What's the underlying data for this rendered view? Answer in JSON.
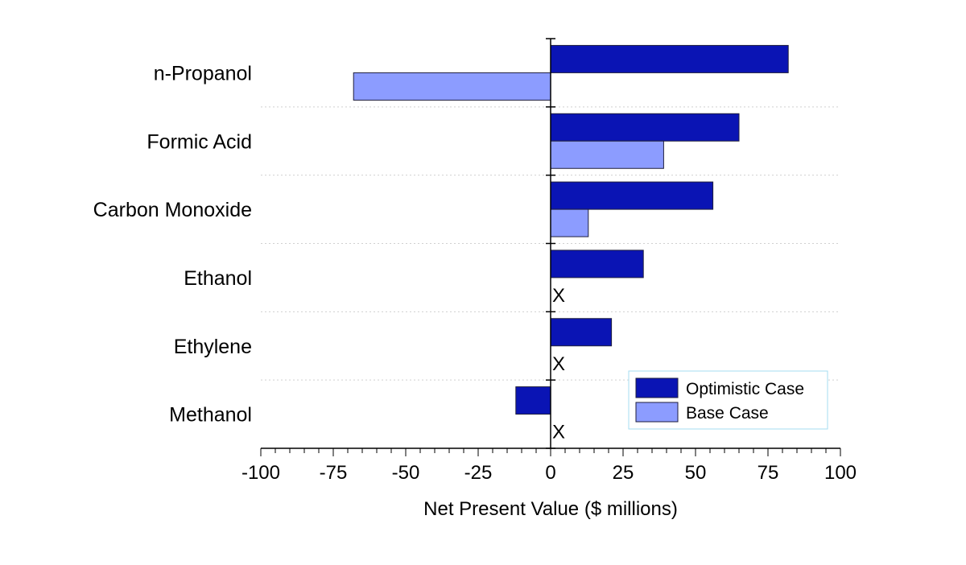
{
  "chart_data": {
    "type": "bar",
    "orientation": "horizontal",
    "title": "",
    "xlabel": "Net Present Value ($ millions)",
    "ylabel": "",
    "xlim": [
      -100,
      100
    ],
    "xticks": [
      -100,
      -75,
      -50,
      -25,
      0,
      25,
      50,
      75,
      100
    ],
    "xtick_labels": [
      "-100",
      "-75",
      "-50",
      "-25",
      "0",
      "25",
      "50",
      "75",
      "100"
    ],
    "categories": [
      "n-Propanol",
      "Formic Acid",
      "Carbon Monoxide",
      "Ethanol",
      "Ethylene",
      "Methanol"
    ],
    "series": [
      {
        "name": "Optimistic Case",
        "color": "#0a14b4",
        "values": [
          82,
          65,
          56,
          32,
          21,
          -12
        ]
      },
      {
        "name": "Base Case",
        "color": "#8c9cff",
        "values": [
          -68,
          39,
          13,
          null,
          null,
          null
        ]
      }
    ],
    "missing_marker": "X",
    "grid": "dotted horizontal separators between categories",
    "legend": {
      "position": "bottom-right",
      "border_color": "#a6dcf2"
    }
  }
}
